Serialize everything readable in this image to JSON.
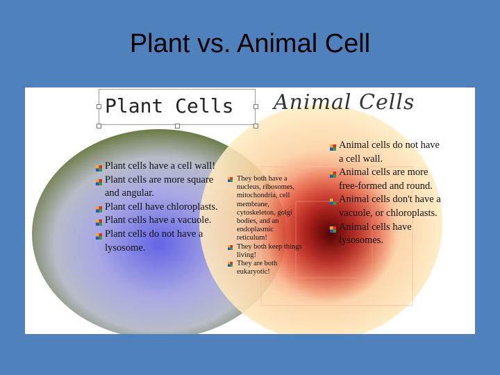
{
  "slide": {
    "title": "Plant vs. Animal Cell"
  },
  "diagram": {
    "plant": {
      "header": "Plant Cells",
      "color": "#6a6ad8",
      "items": [
        "Plant cells have a cell wall!",
        "Plant cells are more square and angular.",
        "Plant cell have chloroplasts.",
        "Plant cells have a vacuole.",
        "Plant cells do not have a lysosome."
      ]
    },
    "animal": {
      "header": "Animal Cells",
      "color": "#e03018",
      "items": [
        "Animal cells do not have a cell wall.",
        "Animal cells are more free-formed and round.",
        "Animal cells don't have a vacuole, or chloroplasts.",
        "Animal cells have lysosomes."
      ]
    },
    "both": {
      "items": [
        "They both have a nucleus, ribosomes, mitochondria, cell membrane, cytoskeleton, golgi bodies, and an endoplasmic reticulum!",
        "They both keep things living!",
        "They are both eukaryotic!"
      ]
    }
  }
}
